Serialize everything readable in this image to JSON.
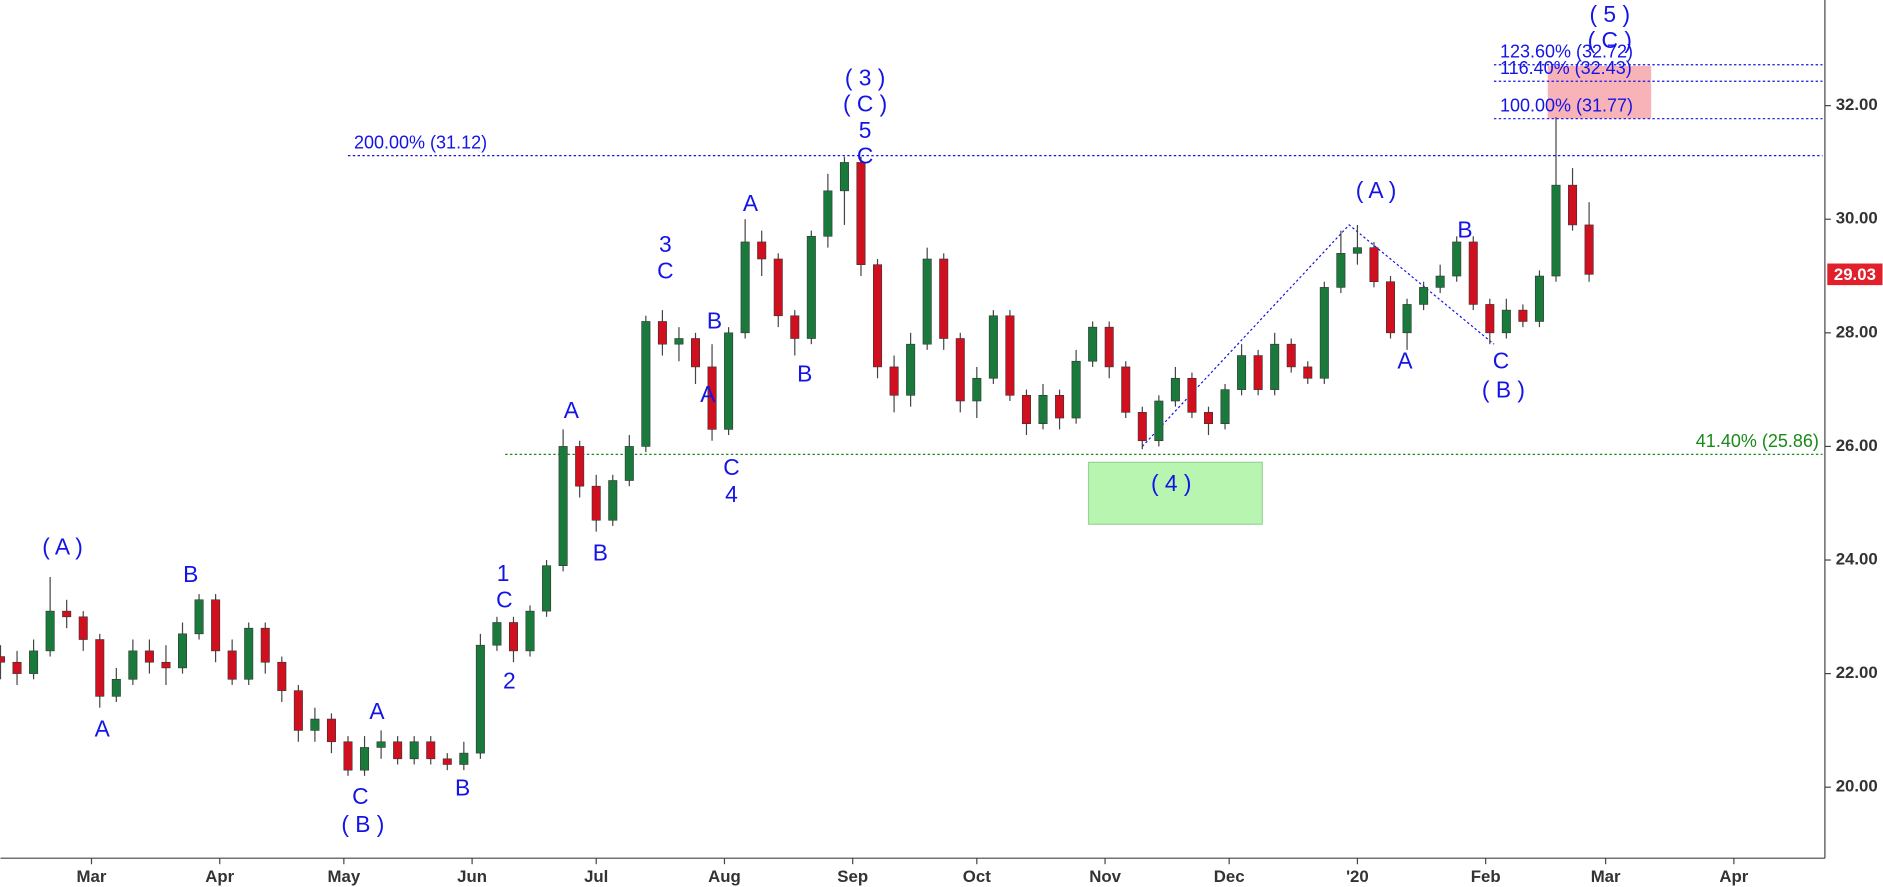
{
  "chart_data": {
    "type": "candlestick",
    "x": [
      37,
      41,
      45,
      49,
      53,
      57,
      61,
      65,
      69,
      73,
      77,
      81,
      85,
      89,
      93,
      97,
      101,
      105,
      109,
      113,
      117,
      121,
      125,
      129,
      133,
      137,
      141,
      145,
      149,
      153,
      157,
      161,
      165,
      169,
      173,
      177,
      181,
      185,
      189,
      193,
      197,
      201,
      205,
      209,
      213,
      217,
      221,
      225,
      229,
      233,
      237,
      241,
      245,
      249,
      253,
      257,
      261,
      265,
      269,
      273,
      277,
      281,
      285,
      289,
      293,
      297,
      301,
      305,
      309,
      313,
      317,
      321,
      325,
      329,
      333,
      337,
      341,
      345,
      349,
      353,
      357,
      361,
      365,
      369,
      373,
      377,
      381,
      385,
      389,
      393,
      397,
      401,
      405,
      409,
      413,
      417,
      421
    ],
    "candles": [
      [
        22.3,
        22.5,
        21.9,
        22.2
      ],
      [
        22.2,
        22.4,
        21.8,
        22.0
      ],
      [
        22.0,
        22.6,
        21.9,
        22.4
      ],
      [
        22.4,
        23.7,
        22.3,
        23.1
      ],
      [
        23.1,
        23.3,
        22.8,
        23.0
      ],
      [
        23.0,
        23.1,
        22.4,
        22.6
      ],
      [
        22.6,
        22.7,
        21.4,
        21.6
      ],
      [
        21.6,
        22.1,
        21.5,
        21.9
      ],
      [
        21.9,
        22.6,
        21.8,
        22.4
      ],
      [
        22.4,
        22.6,
        22.0,
        22.2
      ],
      [
        22.2,
        22.5,
        21.8,
        22.1
      ],
      [
        22.1,
        22.9,
        22.0,
        22.7
      ],
      [
        22.7,
        23.4,
        22.6,
        23.3
      ],
      [
        23.3,
        23.4,
        22.2,
        22.4
      ],
      [
        22.4,
        22.6,
        21.8,
        21.9
      ],
      [
        21.9,
        22.9,
        21.8,
        22.8
      ],
      [
        22.8,
        22.9,
        22.0,
        22.2
      ],
      [
        22.2,
        22.3,
        21.5,
        21.7
      ],
      [
        21.7,
        21.8,
        20.8,
        21.0
      ],
      [
        21.0,
        21.4,
        20.8,
        21.2
      ],
      [
        21.2,
        21.3,
        20.6,
        20.8
      ],
      [
        20.8,
        20.9,
        20.2,
        20.3
      ],
      [
        20.3,
        20.9,
        20.2,
        20.7
      ],
      [
        20.7,
        21.0,
        20.5,
        20.8
      ],
      [
        20.8,
        20.9,
        20.4,
        20.5
      ],
      [
        20.5,
        20.9,
        20.4,
        20.8
      ],
      [
        20.8,
        20.9,
        20.4,
        20.5
      ],
      [
        20.5,
        20.6,
        20.3,
        20.4
      ],
      [
        20.4,
        20.8,
        20.3,
        20.6
      ],
      [
        20.6,
        22.7,
        20.5,
        22.5
      ],
      [
        22.5,
        23.0,
        22.4,
        22.9
      ],
      [
        22.9,
        23.0,
        22.2,
        22.4
      ],
      [
        22.4,
        23.2,
        22.3,
        23.1
      ],
      [
        23.1,
        24.0,
        23.0,
        23.9
      ],
      [
        23.9,
        26.3,
        23.8,
        26.0
      ],
      [
        26.0,
        26.1,
        25.1,
        25.3
      ],
      [
        25.3,
        25.5,
        24.5,
        24.7
      ],
      [
        24.7,
        25.5,
        24.6,
        25.4
      ],
      [
        25.4,
        26.2,
        25.3,
        26.0
      ],
      [
        26.0,
        28.3,
        25.9,
        28.2
      ],
      [
        28.2,
        28.4,
        27.6,
        27.8
      ],
      [
        27.8,
        28.1,
        27.5,
        27.9
      ],
      [
        27.9,
        28.0,
        27.1,
        27.4
      ],
      [
        27.4,
        27.8,
        26.1,
        26.3
      ],
      [
        26.3,
        28.1,
        26.2,
        28.0
      ],
      [
        28.0,
        30.0,
        27.9,
        29.6
      ],
      [
        29.6,
        29.8,
        29.0,
        29.3
      ],
      [
        29.3,
        29.4,
        28.1,
        28.3
      ],
      [
        28.3,
        28.4,
        27.6,
        27.9
      ],
      [
        27.9,
        29.8,
        27.8,
        29.7
      ],
      [
        29.7,
        30.8,
        29.5,
        30.5
      ],
      [
        30.5,
        31.1,
        29.9,
        31.0
      ],
      [
        31.0,
        31.1,
        29.0,
        29.2
      ],
      [
        29.2,
        29.3,
        27.2,
        27.4
      ],
      [
        27.4,
        27.6,
        26.6,
        26.9
      ],
      [
        26.9,
        28.0,
        26.7,
        27.8
      ],
      [
        27.8,
        29.5,
        27.7,
        29.3
      ],
      [
        29.3,
        29.4,
        27.7,
        27.9
      ],
      [
        27.9,
        28.0,
        26.6,
        26.8
      ],
      [
        26.8,
        27.4,
        26.5,
        27.2
      ],
      [
        27.2,
        28.4,
        27.1,
        28.3
      ],
      [
        28.3,
        28.4,
        26.8,
        26.9
      ],
      [
        26.9,
        27.0,
        26.2,
        26.4
      ],
      [
        26.4,
        27.1,
        26.3,
        26.9
      ],
      [
        26.9,
        27.0,
        26.3,
        26.5
      ],
      [
        26.5,
        27.7,
        26.4,
        27.5
      ],
      [
        27.5,
        28.2,
        27.4,
        28.1
      ],
      [
        28.1,
        28.2,
        27.2,
        27.4
      ],
      [
        27.4,
        27.5,
        26.5,
        26.6
      ],
      [
        26.6,
        26.7,
        25.95,
        26.1
      ],
      [
        26.1,
        26.9,
        26.0,
        26.8
      ],
      [
        26.8,
        27.4,
        26.7,
        27.2
      ],
      [
        27.2,
        27.3,
        26.5,
        26.6
      ],
      [
        26.6,
        26.7,
        26.2,
        26.4
      ],
      [
        26.4,
        27.1,
        26.3,
        27.0
      ],
      [
        27.0,
        27.8,
        26.9,
        27.6
      ],
      [
        27.6,
        27.7,
        26.9,
        27.0
      ],
      [
        27.0,
        28.0,
        26.9,
        27.8
      ],
      [
        27.8,
        27.9,
        27.3,
        27.4
      ],
      [
        27.4,
        27.5,
        27.1,
        27.2
      ],
      [
        27.2,
        28.9,
        27.1,
        28.8
      ],
      [
        28.8,
        29.8,
        28.7,
        29.4
      ],
      [
        29.4,
        29.9,
        29.2,
        29.5
      ],
      [
        29.5,
        29.6,
        28.8,
        28.9
      ],
      [
        28.9,
        29.0,
        27.9,
        28.0
      ],
      [
        28.0,
        28.6,
        27.7,
        28.5
      ],
      [
        28.5,
        28.9,
        28.4,
        28.8
      ],
      [
        28.8,
        29.2,
        28.7,
        29.0
      ],
      [
        29.0,
        29.7,
        28.9,
        29.6
      ],
      [
        29.6,
        29.7,
        28.4,
        28.5
      ],
      [
        28.5,
        28.6,
        27.8,
        28.0
      ],
      [
        28.0,
        28.6,
        27.9,
        28.4
      ],
      [
        28.4,
        28.5,
        28.1,
        28.2
      ],
      [
        28.2,
        29.1,
        28.1,
        29.0
      ],
      [
        29.0,
        31.8,
        28.9,
        30.6
      ],
      [
        30.6,
        30.9,
        29.8,
        29.9
      ],
      [
        29.9,
        30.3,
        28.9,
        29.03
      ]
    ],
    "up_color": "#1a7a3c",
    "down_color": "#d0101e",
    "xlim": [
      37,
      478
    ],
    "ylim": [
      18.75,
      33.86
    ],
    "yticks": [
      {
        "value": 20,
        "label": "20.00"
      },
      {
        "value": 22,
        "label": "22.00"
      },
      {
        "value": 24,
        "label": "24.00"
      },
      {
        "value": 26,
        "label": "26.00"
      },
      {
        "value": 28,
        "label": "28.00"
      },
      {
        "value": 30,
        "label": "30.00"
      },
      {
        "value": 32,
        "label": "32.00"
      }
    ],
    "xticks": [
      {
        "value": 59,
        "label": "Mar"
      },
      {
        "value": 90,
        "label": "Apr"
      },
      {
        "value": 120,
        "label": "May"
      },
      {
        "value": 151,
        "label": "Jun"
      },
      {
        "value": 181,
        "label": "Jul"
      },
      {
        "value": 212,
        "label": "Aug"
      },
      {
        "value": 243,
        "label": "Sep"
      },
      {
        "value": 273,
        "label": "Oct"
      },
      {
        "value": 304,
        "label": "Nov"
      },
      {
        "value": 334,
        "label": "Dec"
      },
      {
        "value": 365,
        "label": "'20"
      },
      {
        "value": 396,
        "label": "Feb"
      },
      {
        "value": 425,
        "label": "Mar"
      },
      {
        "value": 456,
        "label": "Apr"
      }
    ],
    "levels": [
      {
        "value": 31.12,
        "label": "200.00% (31.12)",
        "color": "#1414e6",
        "from": 121
      },
      {
        "value": 31.77,
        "label": "100.00% (31.77)",
        "color": "#1414e6",
        "from": 398
      },
      {
        "value": 32.43,
        "label": "116.40% (32.43)",
        "color": "#1414e6",
        "from": 398
      },
      {
        "value": 32.72,
        "label": "123.60% (32.72)",
        "color": "#1414e6",
        "from": 398
      },
      {
        "value": 25.86,
        "label": "41.40% (25.86)",
        "color": "#1a8a1a",
        "from": 159
      }
    ],
    "zones": [
      {
        "color": "#f7b3b8",
        "x": [
          411,
          436
        ],
        "y": [
          32.7,
          31.77
        ]
      },
      {
        "color": "#b7f5b0",
        "x": [
          300,
          342
        ],
        "y": [
          25.72,
          24.63
        ]
      }
    ],
    "wave_lines": {
      "color": "#1414e6",
      "x": [
        313,
        363,
        398
      ],
      "y": [
        26.0,
        29.9,
        27.8
      ]
    },
    "annotations": [
      {
        "text": "( A )",
        "x": 52,
        "y": 24.2
      },
      {
        "text": "A",
        "x": 61.6,
        "y": 21.0
      },
      {
        "text": "B",
        "x": 83,
        "y": 23.72
      },
      {
        "text": "C",
        "x": 124,
        "y": 19.81
      },
      {
        "text": "( B )",
        "x": 124.6,
        "y": 19.32
      },
      {
        "text": "A",
        "x": 128,
        "y": 21.31
      },
      {
        "text": "B",
        "x": 148.7,
        "y": 19.96
      },
      {
        "text": "1",
        "x": 158.5,
        "y": 23.74
      },
      {
        "text": "C",
        "x": 158.8,
        "y": 23.27
      },
      {
        "text": "2",
        "x": 160,
        "y": 21.84
      },
      {
        "text": "A",
        "x": 175,
        "y": 26.61
      },
      {
        "text": "B",
        "x": 182,
        "y": 24.1
      },
      {
        "text": "3",
        "x": 197.7,
        "y": 29.53
      },
      {
        "text": "C",
        "x": 197.7,
        "y": 29.06
      },
      {
        "text": "B",
        "x": 209.6,
        "y": 28.18
      },
      {
        "text": "A",
        "x": 208,
        "y": 26.89
      },
      {
        "text": "C",
        "x": 213.7,
        "y": 25.6
      },
      {
        "text": "4",
        "x": 213.7,
        "y": 25.13
      },
      {
        "text": "A",
        "x": 218.3,
        "y": 30.25
      },
      {
        "text": "B",
        "x": 231.4,
        "y": 27.25
      },
      {
        "text": "( 3 )",
        "x": 246,
        "y": 32.46
      },
      {
        "text": "( C )",
        "x": 246,
        "y": 32.0
      },
      {
        "text": "5",
        "x": 246,
        "y": 31.54
      },
      {
        "text": "C",
        "x": 246,
        "y": 31.09
      },
      {
        "text": "( 4 )",
        "x": 320,
        "y": 25.32
      },
      {
        "text": "( A )",
        "x": 369.5,
        "y": 30.48
      },
      {
        "text": "A",
        "x": 376.5,
        "y": 27.48
      },
      {
        "text": "B",
        "x": 391,
        "y": 29.78
      },
      {
        "text": "C",
        "x": 399.7,
        "y": 27.48
      },
      {
        "text": "( B )",
        "x": 400.3,
        "y": 26.97
      },
      {
        "text": "( 5 )",
        "x": 426,
        "y": 33.58
      },
      {
        "text": "( C )",
        "x": 426,
        "y": 33.12
      }
    ],
    "last_price_color": "#e0202a"
  }
}
